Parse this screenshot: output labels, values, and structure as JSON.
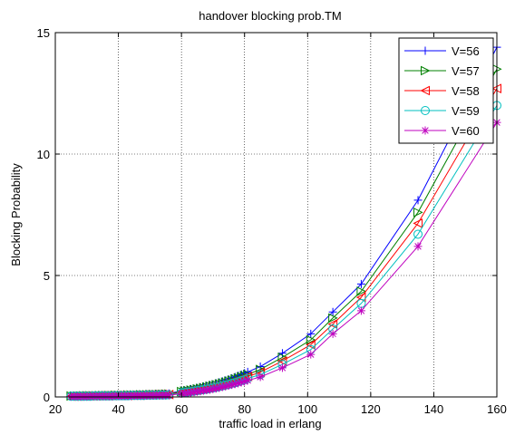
{
  "chart_data": {
    "type": "line",
    "title": "handover blocking prob.TM",
    "xlabel": "traffic load in erlang",
    "ylabel": "Blocking Probability",
    "xlim": [
      20,
      160
    ],
    "ylim": [
      0,
      15
    ],
    "xticks": [
      20,
      40,
      60,
      80,
      100,
      120,
      140,
      160
    ],
    "yticks": [
      0,
      5,
      10,
      15
    ],
    "xtick_labels": [
      "20",
      "40",
      "60",
      "80",
      "100",
      "120",
      "140",
      "160"
    ],
    "ytick_labels": [
      "0",
      "5",
      "10",
      "15"
    ],
    "grid": true,
    "legend_position": "top-right",
    "x": [
      25,
      26,
      27,
      28,
      29,
      30,
      31,
      32,
      33,
      34,
      35,
      36,
      37,
      38,
      39,
      40,
      41,
      42,
      43,
      44,
      45,
      46,
      47,
      48,
      49,
      50,
      51,
      52,
      53,
      54,
      55,
      56,
      60,
      61,
      62,
      63,
      64,
      65,
      66,
      67,
      68,
      69,
      70,
      71,
      72,
      73,
      74,
      75,
      76,
      77,
      78,
      79,
      80,
      81,
      85,
      92,
      101,
      108,
      117,
      135,
      160
    ],
    "series": [
      {
        "name": "V=56",
        "color": "#0000ff",
        "marker": "plus",
        "values": [
          0.05,
          0.05,
          0.05,
          0.05,
          0.06,
          0.06,
          0.06,
          0.06,
          0.06,
          0.07,
          0.07,
          0.07,
          0.07,
          0.07,
          0.08,
          0.08,
          0.08,
          0.08,
          0.09,
          0.09,
          0.09,
          0.1,
          0.1,
          0.1,
          0.11,
          0.11,
          0.11,
          0.12,
          0.12,
          0.13,
          0.13,
          0.14,
          0.25,
          0.27,
          0.29,
          0.32,
          0.34,
          0.37,
          0.4,
          0.43,
          0.46,
          0.49,
          0.52,
          0.56,
          0.6,
          0.64,
          0.68,
          0.72,
          0.77,
          0.82,
          0.87,
          0.92,
          0.98,
          1.03,
          1.25,
          1.8,
          2.6,
          3.5,
          4.65,
          8.1,
          14.4
        ]
      },
      {
        "name": "V=57",
        "color": "#008000",
        "marker": "triangle-right",
        "values": [
          0.04,
          0.04,
          0.04,
          0.04,
          0.05,
          0.05,
          0.05,
          0.05,
          0.05,
          0.06,
          0.06,
          0.06,
          0.06,
          0.06,
          0.07,
          0.07,
          0.07,
          0.07,
          0.08,
          0.08,
          0.08,
          0.08,
          0.09,
          0.09,
          0.09,
          0.1,
          0.1,
          0.1,
          0.11,
          0.11,
          0.12,
          0.12,
          0.22,
          0.24,
          0.26,
          0.28,
          0.3,
          0.33,
          0.35,
          0.38,
          0.41,
          0.44,
          0.47,
          0.5,
          0.54,
          0.57,
          0.61,
          0.65,
          0.69,
          0.74,
          0.78,
          0.83,
          0.88,
          0.93,
          1.13,
          1.63,
          2.35,
          3.25,
          4.35,
          7.6,
          13.5
        ]
      },
      {
        "name": "V=58",
        "color": "#ff0000",
        "marker": "triangle-left",
        "values": [
          0.03,
          0.03,
          0.03,
          0.04,
          0.04,
          0.04,
          0.04,
          0.04,
          0.04,
          0.05,
          0.05,
          0.05,
          0.05,
          0.05,
          0.06,
          0.06,
          0.06,
          0.06,
          0.06,
          0.07,
          0.07,
          0.07,
          0.07,
          0.08,
          0.08,
          0.08,
          0.09,
          0.09,
          0.09,
          0.1,
          0.1,
          0.1,
          0.19,
          0.21,
          0.23,
          0.25,
          0.27,
          0.29,
          0.31,
          0.34,
          0.36,
          0.39,
          0.42,
          0.45,
          0.48,
          0.51,
          0.55,
          0.58,
          0.62,
          0.66,
          0.7,
          0.75,
          0.79,
          0.84,
          1.02,
          1.48,
          2.15,
          3.0,
          4.1,
          7.15,
          12.7
        ]
      },
      {
        "name": "V=59",
        "color": "#00bfbf",
        "marker": "circle",
        "values": [
          0.03,
          0.03,
          0.03,
          0.03,
          0.03,
          0.03,
          0.03,
          0.04,
          0.04,
          0.04,
          0.04,
          0.04,
          0.04,
          0.04,
          0.05,
          0.05,
          0.05,
          0.05,
          0.05,
          0.06,
          0.06,
          0.06,
          0.06,
          0.06,
          0.07,
          0.07,
          0.07,
          0.07,
          0.08,
          0.08,
          0.08,
          0.09,
          0.16,
          0.18,
          0.2,
          0.22,
          0.24,
          0.26,
          0.28,
          0.3,
          0.32,
          0.35,
          0.37,
          0.4,
          0.43,
          0.46,
          0.49,
          0.52,
          0.56,
          0.59,
          0.63,
          0.67,
          0.71,
          0.76,
          0.92,
          1.34,
          1.95,
          2.8,
          3.85,
          6.7,
          12.0
        ]
      },
      {
        "name": "V=60",
        "color": "#bf00bf",
        "marker": "asterisk",
        "values": [
          0.02,
          0.02,
          0.02,
          0.02,
          0.02,
          0.02,
          0.03,
          0.03,
          0.03,
          0.03,
          0.03,
          0.03,
          0.03,
          0.03,
          0.04,
          0.04,
          0.04,
          0.04,
          0.04,
          0.04,
          0.05,
          0.05,
          0.05,
          0.05,
          0.05,
          0.05,
          0.06,
          0.06,
          0.06,
          0.06,
          0.07,
          0.07,
          0.13,
          0.15,
          0.16,
          0.18,
          0.2,
          0.22,
          0.24,
          0.26,
          0.28,
          0.3,
          0.33,
          0.35,
          0.38,
          0.41,
          0.44,
          0.47,
          0.5,
          0.53,
          0.57,
          0.6,
          0.64,
          0.68,
          0.82,
          1.2,
          1.75,
          2.6,
          3.55,
          6.2,
          11.3
        ]
      }
    ]
  }
}
